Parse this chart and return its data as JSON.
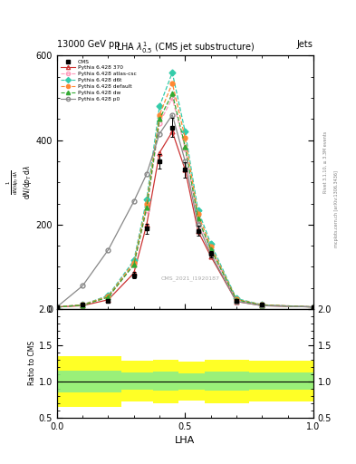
{
  "title_top": "13000 GeV pp",
  "title_right": "Jets",
  "plot_title": "LHA $\\lambda^1_{0.5}$ (CMS jet substructure)",
  "xlabel": "LHA",
  "ylabel_ratio": "Ratio to CMS",
  "watermark": "CMS_2021_I1920187",
  "rivet_label": "Rivet 3.1.10, ≥ 3.3M events",
  "mcplots_label": "mcplots.cern.ch [arXiv:1306.3436]",
  "x": [
    0.0,
    0.1,
    0.2,
    0.3,
    0.35,
    0.4,
    0.45,
    0.5,
    0.55,
    0.6,
    0.7,
    0.8,
    1.0
  ],
  "cms_data": [
    5,
    10,
    20,
    80,
    190,
    350,
    430,
    330,
    185,
    130,
    20,
    10,
    5
  ],
  "cms_errors": [
    2,
    3,
    4,
    8,
    12,
    18,
    22,
    18,
    12,
    8,
    4,
    2,
    2
  ],
  "series": [
    {
      "label": "Pythia 6.428 370",
      "color": "#cc3333",
      "linestyle": "-",
      "marker": "^",
      "markerfacecolor": "none",
      "values": [
        5,
        8,
        22,
        85,
        200,
        370,
        420,
        330,
        185,
        125,
        18,
        8,
        5
      ]
    },
    {
      "label": "Pythia 6.428 atlas-csc",
      "color": "#ff99bb",
      "linestyle": "--",
      "marker": "o",
      "markerfacecolor": "none",
      "values": [
        5,
        10,
        28,
        105,
        235,
        440,
        500,
        380,
        210,
        140,
        22,
        10,
        5
      ]
    },
    {
      "label": "Pythia 6.428 d6t",
      "color": "#33ccaa",
      "linestyle": "--",
      "marker": "D",
      "markerfacecolor": "#33ccaa",
      "values": [
        5,
        10,
        32,
        115,
        260,
        480,
        560,
        420,
        235,
        155,
        25,
        10,
        5
      ]
    },
    {
      "label": "Pythia 6.428 default",
      "color": "#ff8833",
      "linestyle": "--",
      "marker": "o",
      "markerfacecolor": "#ff8833",
      "values": [
        5,
        10,
        30,
        110,
        250,
        460,
        535,
        405,
        225,
        148,
        23,
        10,
        5
      ]
    },
    {
      "label": "Pythia 6.428 dw",
      "color": "#33aa33",
      "linestyle": "--",
      "marker": "^",
      "markerfacecolor": "#33aa33",
      "values": [
        5,
        9,
        28,
        105,
        240,
        450,
        510,
        385,
        215,
        142,
        22,
        9,
        5
      ]
    },
    {
      "label": "Pythia 6.428 p0",
      "color": "#888888",
      "linestyle": "-",
      "marker": "o",
      "markerfacecolor": "none",
      "values": [
        5,
        55,
        140,
        255,
        320,
        415,
        460,
        350,
        200,
        130,
        18,
        8,
        5
      ]
    }
  ],
  "ylim_main": [
    0,
    600
  ],
  "yticks_main": [
    0,
    200,
    400,
    600
  ],
  "ylim_ratio": [
    0.5,
    2.0
  ],
  "yticks_ratio": [
    0.5,
    1.0,
    1.5,
    2.0
  ],
  "xlim": [
    0.0,
    1.0
  ],
  "xticks": [
    0.0,
    0.5,
    1.0
  ],
  "ratio_yellow_lo": [
    0.65,
    0.65,
    0.72,
    0.72,
    0.7,
    0.7,
    0.73,
    0.73,
    0.7,
    0.7,
    0.72,
    0.72,
    0.75
  ],
  "ratio_yellow_hi": [
    1.35,
    1.35,
    1.28,
    1.28,
    1.3,
    1.3,
    1.27,
    1.27,
    1.3,
    1.3,
    1.28,
    1.28,
    1.25
  ],
  "ratio_green_lo": [
    0.85,
    0.85,
    0.88,
    0.88,
    0.87,
    0.87,
    0.89,
    0.89,
    0.87,
    0.87,
    0.88,
    0.88,
    0.9
  ],
  "ratio_green_hi": [
    1.15,
    1.15,
    1.12,
    1.12,
    1.13,
    1.13,
    1.11,
    1.11,
    1.13,
    1.13,
    1.12,
    1.12,
    1.1
  ]
}
